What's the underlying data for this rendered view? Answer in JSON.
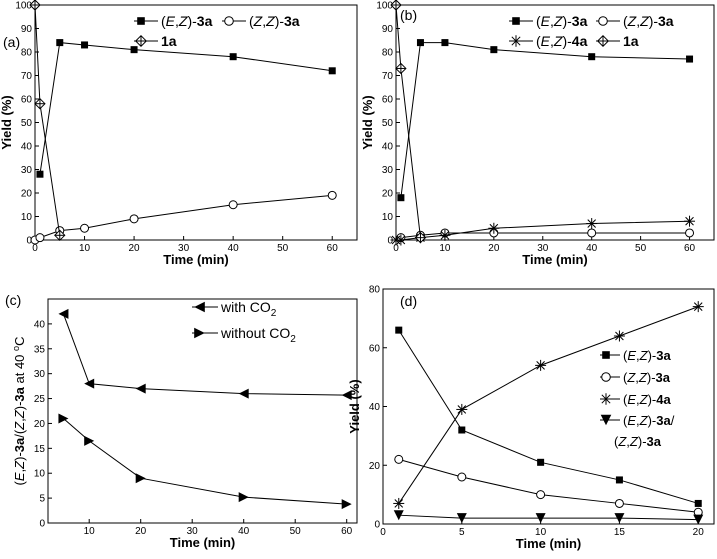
{
  "chart_data": [
    {
      "id": "a",
      "type": "line",
      "panel_label": "(a)",
      "xlabel": "Time (min)",
      "ylabel": "Yield (%)",
      "xlim": [
        0,
        65
      ],
      "ylim": [
        0,
        100
      ],
      "xticks": [
        0,
        10,
        20,
        30,
        40,
        50,
        60
      ],
      "yticks": [
        0,
        10,
        20,
        30,
        40,
        50,
        60,
        70,
        80,
        90,
        100
      ],
      "legend_position": "top-right",
      "legend_layout": [
        [
          "s0",
          "s1"
        ],
        [
          "s2"
        ]
      ],
      "series": [
        {
          "key": "s0",
          "name": "(E,Z)-3a",
          "marker": "filled-square",
          "x": [
            1,
            5,
            10,
            20,
            40,
            60
          ],
          "y": [
            28,
            84,
            83,
            81,
            78,
            72
          ]
        },
        {
          "key": "s1",
          "name": "(Z,Z)-3a",
          "marker": "open-circle",
          "x": [
            0,
            1,
            5,
            10,
            20,
            40,
            60
          ],
          "y": [
            0,
            1,
            4,
            5,
            9,
            15,
            19
          ]
        },
        {
          "key": "s2",
          "name": "1a",
          "marker": "crossed-diamond",
          "x": [
            0,
            1,
            5
          ],
          "y": [
            100,
            58,
            2
          ]
        }
      ]
    },
    {
      "id": "b",
      "type": "line",
      "panel_label": "(b)",
      "xlabel": "Time (min)",
      "ylabel": "Yield (%)",
      "xlim": [
        0,
        65
      ],
      "ylim": [
        0,
        100
      ],
      "xticks": [
        0,
        10,
        20,
        30,
        40,
        50,
        60
      ],
      "yticks": [
        0,
        10,
        20,
        30,
        40,
        50,
        60,
        70,
        80,
        90,
        100
      ],
      "legend_position": "top-right",
      "legend_layout": [
        [
          "s0",
          "s1"
        ],
        [
          "s2",
          "s3"
        ]
      ],
      "series": [
        {
          "key": "s0",
          "name": "(E,Z)-3a",
          "marker": "filled-square",
          "x": [
            1,
            5,
            10,
            20,
            40,
            60
          ],
          "y": [
            18,
            84,
            84,
            81,
            78,
            77
          ]
        },
        {
          "key": "s1",
          "name": "(Z,Z)-3a",
          "marker": "open-circle",
          "x": [
            1,
            5,
            10,
            20,
            40,
            60
          ],
          "y": [
            1,
            2,
            3,
            3,
            3,
            3
          ]
        },
        {
          "key": "s2",
          "name": "(E,Z)-4a",
          "marker": "asterisk",
          "x": [
            0,
            1,
            5,
            10,
            20,
            40,
            60
          ],
          "y": [
            0,
            0,
            1,
            2,
            5,
            7,
            8
          ]
        },
        {
          "key": "s3",
          "name": "1a",
          "marker": "crossed-diamond",
          "x": [
            0,
            1,
            5
          ],
          "y": [
            100,
            73,
            1
          ]
        }
      ]
    },
    {
      "id": "c",
      "type": "line",
      "panel_label": "(c)",
      "xlabel": "Time (min)",
      "ylabel": "(E,Z)-3a/(Z,Z)-3a at 40 °C",
      "xlim": [
        2,
        62
      ],
      "ylim": [
        0,
        45
      ],
      "xticks": [
        10,
        20,
        30,
        40,
        50,
        60
      ],
      "yticks": [
        0,
        5,
        10,
        15,
        20,
        25,
        30,
        35,
        40
      ],
      "legend_position": "top-right",
      "legend_layout": [
        [
          "s0"
        ],
        [
          "s1"
        ]
      ],
      "series": [
        {
          "key": "s0",
          "name": "with CO2",
          "marker": "left-triangle",
          "x": [
            5,
            10,
            20,
            40,
            60
          ],
          "y": [
            42,
            28,
            27,
            26,
            25.7
          ]
        },
        {
          "key": "s1",
          "name": "without CO2",
          "marker": "right-triangle",
          "x": [
            5,
            10,
            20,
            40,
            60
          ],
          "y": [
            21,
            16.5,
            9,
            5.2,
            3.8
          ]
        }
      ]
    },
    {
      "id": "d",
      "type": "line",
      "panel_label": "(d)",
      "xlabel": "Time (min)",
      "ylabel": "Yield (%)",
      "xlim": [
        0,
        21
      ],
      "ylim": [
        0,
        80
      ],
      "xticks": [
        0,
        5,
        10,
        15,
        20
      ],
      "yticks": [
        0,
        20,
        40,
        60,
        80
      ],
      "legend_position": "right",
      "legend_layout": [
        [
          "s0"
        ],
        [
          "s1"
        ],
        [
          "s2"
        ],
        [
          "s3"
        ]
      ],
      "series": [
        {
          "key": "s0",
          "name": "(E,Z)-3a",
          "marker": "filled-square",
          "x": [
            1,
            5,
            10,
            15,
            20
          ],
          "y": [
            66,
            32,
            21,
            15,
            7
          ]
        },
        {
          "key": "s1",
          "name": "(Z,Z)-3a",
          "marker": "open-circle",
          "x": [
            1,
            5,
            10,
            15,
            20
          ],
          "y": [
            22,
            16,
            10,
            7,
            4
          ]
        },
        {
          "key": "s2",
          "name": "(E,Z)-4a",
          "marker": "asterisk",
          "x": [
            1,
            5,
            10,
            15,
            20
          ],
          "y": [
            7,
            39,
            54,
            64,
            74
          ]
        },
        {
          "key": "s3",
          "name": "(E,Z)-3a/(Z,Z)-3a",
          "marker": "down-triangle",
          "x": [
            1,
            5,
            10,
            15,
            20
          ],
          "y": [
            3,
            2,
            2,
            2,
            1.5
          ]
        }
      ]
    }
  ]
}
